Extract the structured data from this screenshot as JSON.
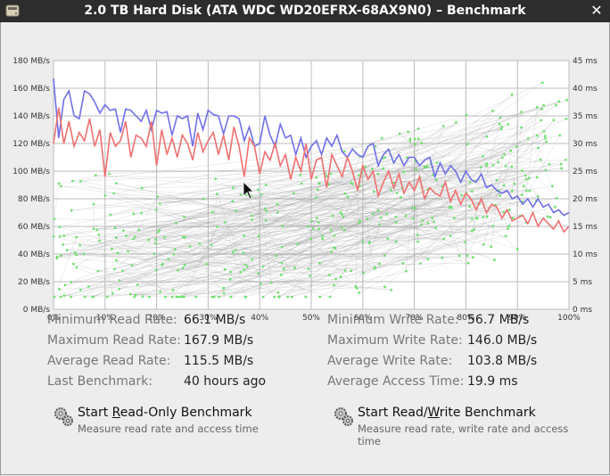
{
  "window": {
    "title": "2.0 TB Hard Disk (ATA WDC WD20EFRX-68AX9N0) – Benchmark"
  },
  "stats_left": [
    {
      "label": "Minimum Read Rate:",
      "value": "66.1 MB/s"
    },
    {
      "label": "Maximum Read Rate:",
      "value": "167.9 MB/s"
    },
    {
      "label": "Average Read Rate:",
      "value": "115.5 MB/s"
    },
    {
      "label": "Last Benchmark:",
      "value": "40 hours ago"
    }
  ],
  "stats_right": [
    {
      "label": "Minimum Write Rate:",
      "value": "56.7 MB/s"
    },
    {
      "label": "Maximum Write Rate:",
      "value": "146.0 MB/s"
    },
    {
      "label": "Average Write Rate:",
      "value": "103.8 MB/s"
    },
    {
      "label": "Average Access Time:",
      "value": "19.9 ms"
    }
  ],
  "actions": {
    "read_only": {
      "label_pre": "Start ",
      "label_key": "R",
      "label_post": "ead-Only Benchmark",
      "desc": "Measure read rate and access time"
    },
    "read_write": {
      "label_pre": "Start Read/",
      "label_key": "W",
      "label_post": "rite Benchmark",
      "desc": "Measure read rate, write rate and access time"
    }
  },
  "colors": {
    "read": "#7070e8",
    "write": "#f07070",
    "access": "#70e070",
    "grid": "#bcbcbc"
  },
  "icons": {
    "title": "drive-icon",
    "close": "close-icon",
    "action": "gears-icon"
  },
  "chart_data": {
    "type": "line",
    "xlim": [
      0,
      100
    ],
    "ylim_left": [
      0,
      180
    ],
    "ylim_right": [
      0,
      45
    ],
    "x_ticks": [
      "0%",
      "10%",
      "20%",
      "30%",
      "40%",
      "50%",
      "60%",
      "70%",
      "80%",
      "90%",
      "100%"
    ],
    "y_left_ticks": [
      "0 MB/s",
      "20 MB/s",
      "40 MB/s",
      "60 MB/s",
      "80 MB/s",
      "100 MB/s",
      "120 MB/s",
      "140 MB/s",
      "160 MB/s",
      "180 MB/s"
    ],
    "y_right_ticks": [
      "0 ms",
      "5 ms",
      "10 ms",
      "15 ms",
      "20 ms",
      "25 ms",
      "30 ms",
      "35 ms",
      "40 ms",
      "45 ms"
    ],
    "grid": true,
    "series": [
      {
        "x": [
          0,
          1,
          2,
          3,
          4,
          5,
          6,
          7,
          8,
          9,
          10,
          11,
          12,
          13,
          14,
          15,
          16,
          17,
          18,
          19,
          20,
          21,
          22,
          23,
          24,
          25,
          26,
          27,
          28,
          29,
          30,
          31,
          32,
          33,
          34,
          35,
          36,
          37,
          38,
          39,
          40,
          41,
          42,
          43,
          44,
          45,
          46,
          47,
          48,
          49,
          50,
          51,
          52,
          53,
          54,
          55,
          56,
          57,
          58,
          59,
          60,
          61,
          62,
          63,
          64,
          65,
          66,
          67,
          68,
          69,
          70,
          71,
          72,
          73,
          74,
          75,
          76,
          77,
          78,
          79,
          80,
          81,
          82,
          83,
          84,
          85,
          86,
          87,
          88,
          89,
          90,
          91,
          92,
          93,
          94,
          95,
          96,
          97,
          98,
          99,
          100
        ],
        "values": [
          167,
          124,
          152,
          158,
          140,
          138,
          158,
          156,
          150,
          142,
          148,
          144,
          145,
          128,
          145,
          144,
          140,
          136,
          144,
          130,
          144,
          142,
          143,
          126,
          140,
          138,
          140,
          118,
          142,
          130,
          144,
          141,
          140,
          127,
          140,
          140,
          138,
          122,
          132,
          118,
          120,
          140,
          126,
          118,
          134,
          124,
          126,
          112,
          124,
          110,
          118,
          122,
          112,
          124,
          118,
          126,
          114,
          110,
          116,
          112,
          110,
          118,
          120,
          104,
          112,
          116,
          106,
          112,
          104,
          110,
          110,
          104,
          108,
          110,
          96,
          106,
          98,
          104,
          100,
          92,
          100,
          94,
          92,
          98,
          88,
          90,
          86,
          84,
          86,
          80,
          82,
          76,
          80,
          74,
          80,
          74,
          76,
          70,
          72,
          68,
          70
        ]
      },
      {
        "x": [
          0,
          1,
          2,
          3,
          4,
          5,
          6,
          7,
          8,
          9,
          10,
          11,
          12,
          13,
          14,
          15,
          16,
          17,
          18,
          19,
          20,
          21,
          22,
          23,
          24,
          25,
          26,
          27,
          28,
          29,
          30,
          31,
          32,
          33,
          34,
          35,
          36,
          37,
          38,
          39,
          40,
          41,
          42,
          43,
          44,
          45,
          46,
          47,
          48,
          49,
          50,
          51,
          52,
          53,
          54,
          55,
          56,
          57,
          58,
          59,
          60,
          61,
          62,
          63,
          64,
          65,
          66,
          67,
          68,
          69,
          70,
          71,
          72,
          73,
          74,
          75,
          76,
          77,
          78,
          79,
          80,
          81,
          82,
          83,
          84,
          85,
          86,
          87,
          88,
          89,
          90,
          91,
          92,
          93,
          94,
          95,
          96,
          97,
          98,
          99,
          100
        ],
        "values": [
          120,
          146,
          120,
          136,
          118,
          128,
          122,
          138,
          118,
          130,
          96,
          128,
          118,
          122,
          136,
          110,
          126,
          124,
          118,
          136,
          104,
          130,
          112,
          124,
          110,
          126,
          120,
          108,
          128,
          114,
          122,
          128,
          112,
          126,
          108,
          132,
          118,
          96,
          124,
          118,
          98,
          114,
          108,
          120,
          104,
          112,
          94,
          110,
          100,
          120,
          94,
          108,
          110,
          88,
          112,
          104,
          96,
          110,
          100,
          86,
          104,
          94,
          100,
          82,
          92,
          100,
          88,
          98,
          84,
          92,
          86,
          96,
          80,
          88,
          84,
          82,
          92,
          78,
          86,
          76,
          84,
          80,
          72,
          80,
          70,
          76,
          74,
          66,
          72,
          64,
          66,
          68,
          62,
          70,
          60,
          66,
          62,
          58,
          64,
          56,
          60
        ]
      }
    ]
  }
}
